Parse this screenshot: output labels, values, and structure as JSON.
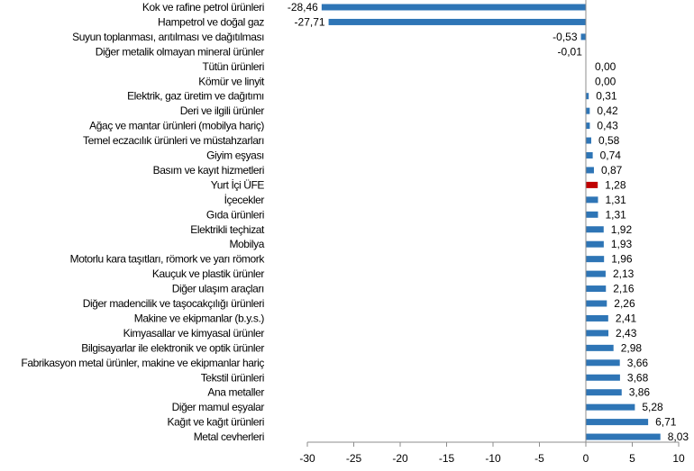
{
  "chart_data": {
    "type": "bar",
    "orientation": "horizontal",
    "title": "",
    "xlabel": "",
    "ylabel": "",
    "xlim": [
      -30,
      10
    ],
    "xticks": [
      -30,
      -25,
      -20,
      -15,
      -10,
      -5,
      0,
      5,
      10
    ],
    "grid": false,
    "legend": "none",
    "bar_color": "#2E75B6",
    "highlight_color": "#C00000",
    "highlight_category": "Yurt İçi ÜFE",
    "categories": [
      "Kok ve rafine petrol ürünleri",
      "Hampetrol ve doğal gaz",
      "Suyun toplanması, arıtılması ve dağıtılması",
      "Diğer metalik olmayan mineral ürünler",
      "Tütün ürünleri",
      "Kömür ve linyit",
      "Elektrik, gaz üretim ve dağıtımı",
      "Deri ve ilgili ürünler",
      "Ağaç ve mantar ürünleri (mobilya hariç)",
      "Temel eczacılık ürünleri ve müstahzarları",
      "Giyim eşyası",
      "Basım ve kayıt hizmetleri",
      "Yurt İçi ÜFE",
      "İçecekler",
      "Gıda ürünleri",
      "Elektrikli teçhizat",
      "Mobilya",
      "Motorlu kara taşıtları, römork ve yarı römork",
      "Kauçuk ve plastik ürünler",
      "Diğer ulaşım araçları",
      "Diğer madencilik ve taşocakçılığı ürünleri",
      "Makine ve ekipmanlar (b.y.s.)",
      "Kimyasallar ve kimyasal ürünler",
      "Bilgisayarlar ile elektronik ve optik ürünler",
      "Fabrikasyon metal ürünler, makine ve ekipmanlar hariç",
      "Tekstil ürünleri",
      "Ana metaller",
      "Diğer mamul eşyalar",
      "Kağıt ve kağıt ürünleri",
      "Metal cevherleri"
    ],
    "values": [
      -28.46,
      -27.71,
      -0.53,
      -0.01,
      0.0,
      0.0,
      0.31,
      0.42,
      0.43,
      0.58,
      0.74,
      0.87,
      1.28,
      1.31,
      1.31,
      1.92,
      1.93,
      1.96,
      2.13,
      2.16,
      2.26,
      2.41,
      2.43,
      2.98,
      3.66,
      3.68,
      3.86,
      5.28,
      6.71,
      8.03
    ],
    "value_labels": [
      "-28,46",
      "-27,71",
      "-0,53",
      "-0,01",
      "0,00",
      "0,00",
      "0,31",
      "0,42",
      "0,43",
      "0,58",
      "0,74",
      "0,87",
      "1,28",
      "1,31",
      "1,31",
      "1,92",
      "1,93",
      "1,96",
      "2,13",
      "2,16",
      "2,26",
      "2,41",
      "2,43",
      "2,98",
      "3,66",
      "3,68",
      "3,86",
      "5,28",
      "6,71",
      "8,03"
    ],
    "tick_labels": [
      "-30",
      "-25",
      "-20",
      "-15",
      "-10",
      "-5",
      "0",
      "5",
      "10"
    ]
  }
}
